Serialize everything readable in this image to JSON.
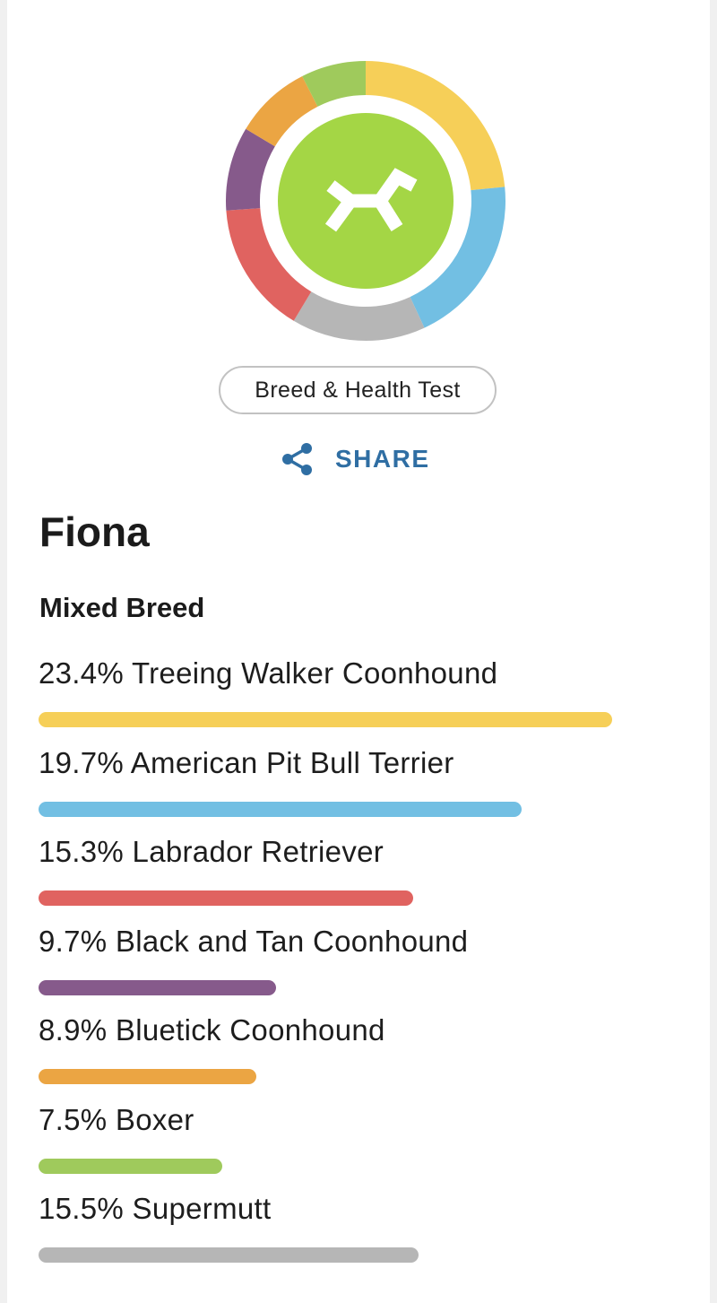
{
  "badge": {
    "label": "Breed & Health Test"
  },
  "share": {
    "label": "SHARE",
    "icon": "share-icon"
  },
  "logo": {
    "icon": "embark-logo-icon",
    "color": "#a4d645"
  },
  "dog": {
    "name": "Fiona",
    "breed_type": "Mixed Breed"
  },
  "breeds": [
    {
      "label": "23.4% Treeing Walker Coonhound",
      "percent": 23.4,
      "color": "#f6cf58"
    },
    {
      "label": "19.7% American Pit Bull Terrier",
      "percent": 19.7,
      "color": "#72bfe3"
    },
    {
      "label": "15.3% Labrador Retriever",
      "percent": 15.3,
      "color": "#e06360"
    },
    {
      "label": "9.7% Black and Tan Coonhound",
      "percent": 9.7,
      "color": "#865a8b"
    },
    {
      "label": "8.9% Bluetick Coonhound",
      "percent": 8.9,
      "color": "#eba543"
    },
    {
      "label": "7.5% Boxer",
      "percent": 7.5,
      "color": "#9fca5c"
    },
    {
      "label": "15.5% Supermutt",
      "percent": 15.5,
      "color": "#b6b6b6"
    }
  ],
  "donut_order": [
    0,
    1,
    6,
    2,
    3,
    4,
    5
  ]
}
